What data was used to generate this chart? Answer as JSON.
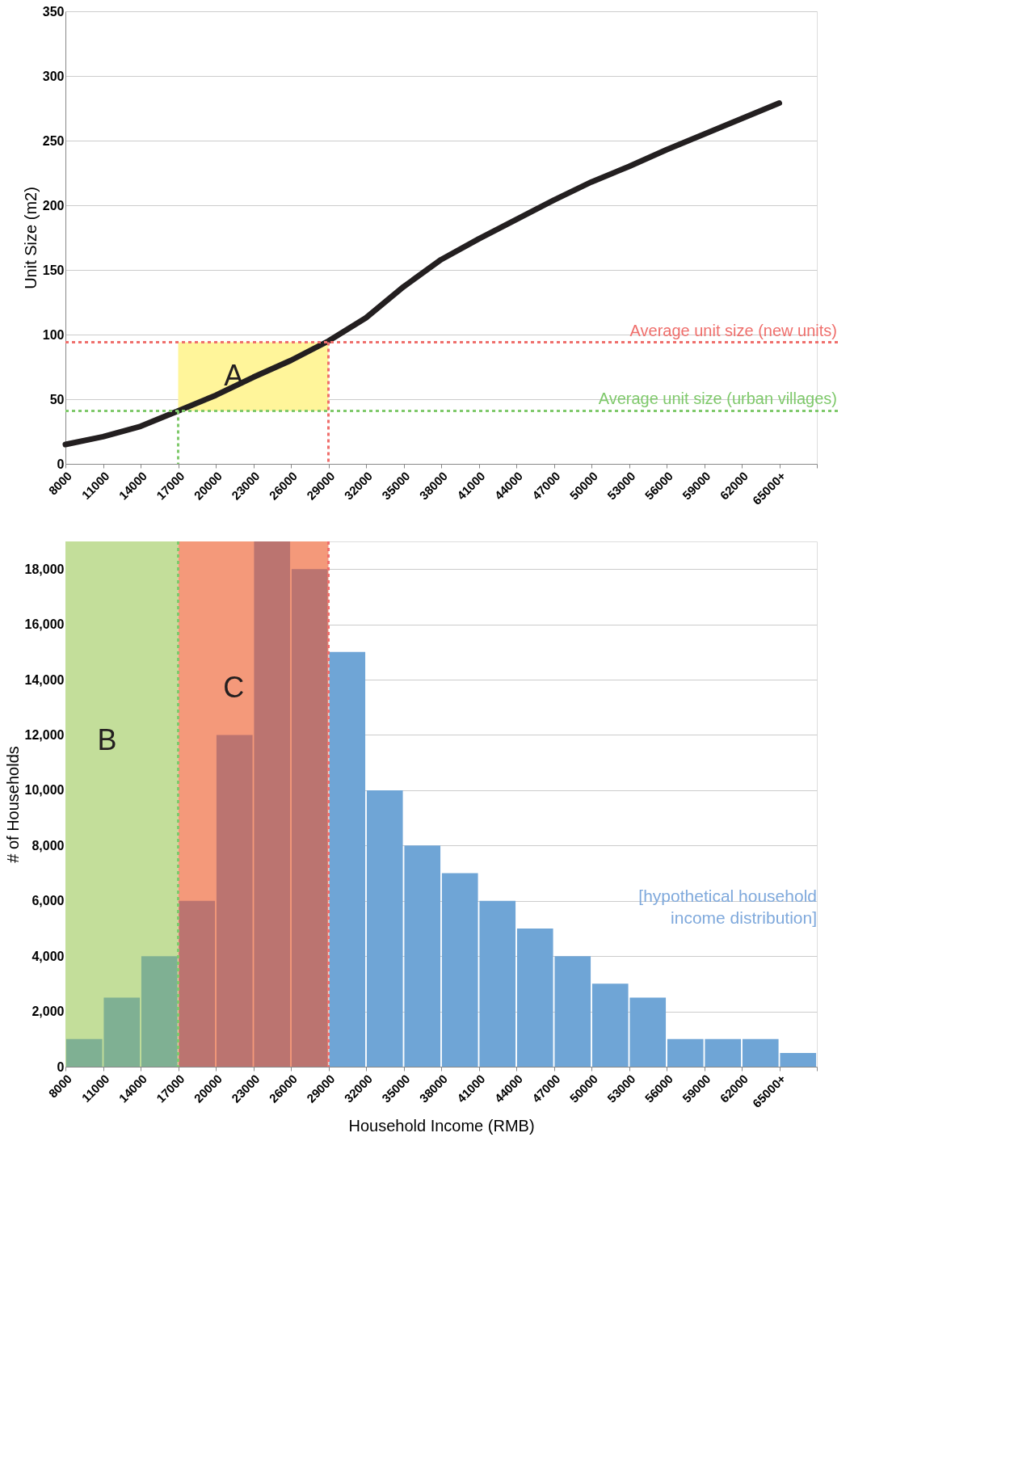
{
  "chart_data": [
    {
      "type": "line",
      "ylabel": "Unit Size (m2)",
      "categories": [
        "8000",
        "11000",
        "14000",
        "17000",
        "20000",
        "23000",
        "26000",
        "29000",
        "32000",
        "35000",
        "38000",
        "41000",
        "44000",
        "47000",
        "50000",
        "53000",
        "56000",
        "59000",
        "62000",
        "65000+"
      ],
      "series": [
        {
          "color": "#231f20",
          "values": [
            15,
            21,
            29,
            41,
            53,
            67,
            80,
            95,
            113,
            137,
            158,
            174,
            189,
            204,
            218,
            230,
            243,
            255,
            267,
            279
          ]
        }
      ],
      "ylim": [
        0,
        350
      ],
      "yticks": [
        0,
        50,
        100,
        150,
        200,
        250,
        300,
        350
      ],
      "grid": "y",
      "marker": "none",
      "line_style": "solid",
      "bands": [
        {
          "axis": "x",
          "from": "17000",
          "to": "29000",
          "label": "A",
          "color": "#fff59a"
        }
      ],
      "ref_lines": [
        {
          "axis": "y",
          "value": 94,
          "label": "Average unit size (new units)",
          "color": "#ef6f6c",
          "line_style": "dotted"
        },
        {
          "axis": "y",
          "value": 41,
          "label": "Average unit size (urban villages)",
          "color": "#7fc96b",
          "line_style": "dotted"
        },
        {
          "axis": "x",
          "value": "17000",
          "color": "#7fc96b",
          "line_style": "dotted"
        },
        {
          "axis": "x",
          "value": "29000",
          "color": "#ef6f6c",
          "line_style": "dotted"
        }
      ]
    },
    {
      "type": "bar",
      "xlabel": "Household Income (RMB)",
      "ylabel": "# of Households",
      "categories": [
        "8000",
        "11000",
        "14000",
        "17000",
        "20000",
        "23000",
        "26000",
        "29000",
        "32000",
        "35000",
        "38000",
        "41000",
        "44000",
        "47000",
        "50000",
        "53000",
        "56000",
        "59000",
        "62000",
        "65000+"
      ],
      "values": [
        1000,
        2500,
        4000,
        6000,
        12000,
        19000,
        18000,
        15000,
        10000,
        8000,
        7000,
        6000,
        5000,
        4000,
        3000,
        2500,
        1000,
        1000,
        1000,
        500
      ],
      "colors": [
        "#7fb093",
        "#7fb093",
        "#7fb093",
        "#bb7470",
        "#bb7470",
        "#bb7470",
        "#bb7470",
        "#6fa5d6",
        "#6fa5d6",
        "#6fa5d6",
        "#6fa5d6",
        "#6fa5d6",
        "#6fa5d6",
        "#6fa5d6",
        "#6fa5d6",
        "#6fa5d6",
        "#6fa5d6",
        "#6fa5d6",
        "#6fa5d6",
        "#6fa5d6"
      ],
      "ylim": [
        0,
        19000
      ],
      "yticks": [
        0,
        {
          "value": 2000,
          "label": "2,000"
        },
        {
          "value": 4000,
          "label": "4,000"
        },
        {
          "value": 6000,
          "label": "6,000"
        },
        {
          "value": 8000,
          "label": "8,000"
        },
        {
          "value": 10000,
          "label": "10,000"
        },
        {
          "value": 12000,
          "label": "12,000"
        },
        {
          "value": 14000,
          "label": "14,000"
        },
        {
          "value": 16000,
          "label": "16,000"
        },
        {
          "value": 18000,
          "label": "18,000"
        }
      ],
      "grid": "y",
      "bands": [
        {
          "axis": "x",
          "from": "8000",
          "to": "17000",
          "label": "B",
          "color": "#c3de9a"
        },
        {
          "axis": "x",
          "from": "17000",
          "to": "29000",
          "label": "C",
          "color": "#f4997a"
        }
      ],
      "ref_lines": [
        {
          "axis": "x",
          "value": "17000",
          "color": "#7fc96b",
          "line_style": "dotted"
        },
        {
          "axis": "x",
          "value": "29000",
          "color": "#ef6f6c",
          "line_style": "dotted"
        }
      ],
      "annotations": [
        "[hypothetical household income distribution]"
      ]
    }
  ]
}
